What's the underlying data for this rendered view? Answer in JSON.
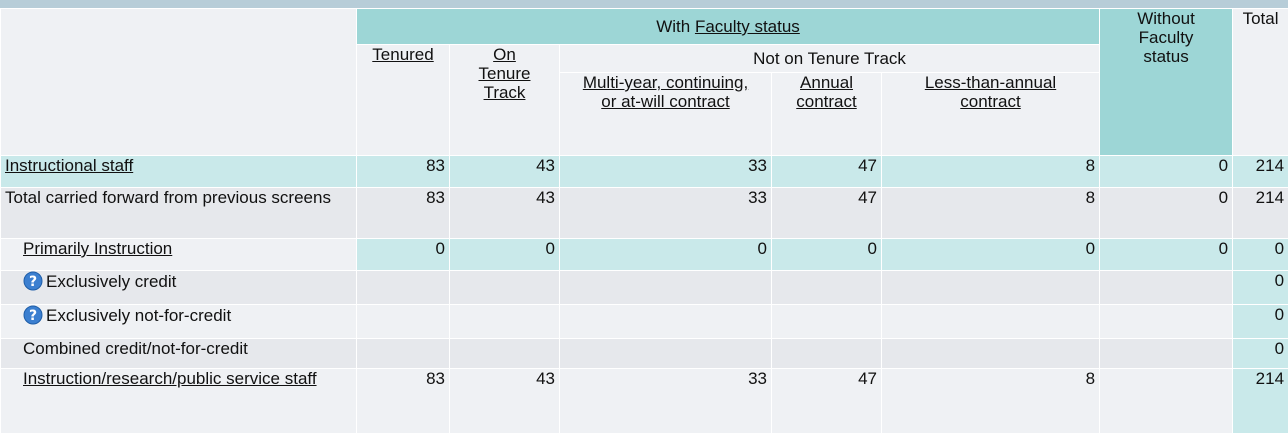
{
  "header": {
    "with_prefix": "With",
    "with_link": "Faculty status",
    "tenured": "Tenured",
    "on_tenure": "On Tenure Track",
    "not_on": "Not on Tenure Track",
    "multi": "Multi-year, continuing, or at-will contract",
    "annual": "Annual contract",
    "less": "Less-than-annual contract",
    "without": "Without Faculty status",
    "total": "Total"
  },
  "rows": [
    {
      "label": "Instructional staff",
      "values": [
        83,
        43,
        33,
        47,
        8,
        0,
        214
      ]
    },
    {
      "label": "Total carried forward from previous screens",
      "values": [
        83,
        43,
        33,
        47,
        8,
        0,
        214
      ]
    },
    {
      "label": "Primarily Instruction",
      "values": [
        0,
        0,
        0,
        0,
        0,
        0,
        0
      ]
    },
    {
      "label": "Exclusively credit",
      "values": [
        null,
        null,
        null,
        null,
        null,
        null,
        0
      ]
    },
    {
      "label": "Exclusively not-for-credit",
      "values": [
        null,
        null,
        null,
        null,
        null,
        null,
        0
      ]
    },
    {
      "label": "Combined credit/not-for-credit",
      "values": [
        null,
        null,
        null,
        null,
        null,
        null,
        0
      ]
    },
    {
      "label": "Instruction/research/public service staff",
      "values": [
        83,
        43,
        33,
        47,
        8,
        null,
        214
      ]
    }
  ]
}
